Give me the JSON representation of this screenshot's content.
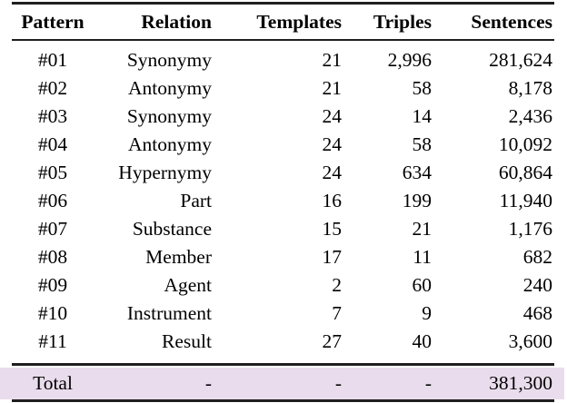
{
  "table": {
    "header": [
      "Pattern",
      "Relation",
      "Templates",
      "Triples",
      "Sentences"
    ],
    "rows": [
      [
        "#01",
        "Synonymy",
        "21",
        "2,996",
        "281,624"
      ],
      [
        "#02",
        "Antonymy",
        "21",
        "58",
        "8,178"
      ],
      [
        "#03",
        "Synonymy",
        "24",
        "14",
        "2,436"
      ],
      [
        "#04",
        "Antonymy",
        "24",
        "58",
        "10,092"
      ],
      [
        "#05",
        "Hypernymy",
        "24",
        "634",
        "60,864"
      ],
      [
        "#06",
        "Part",
        "16",
        "199",
        "11,940"
      ],
      [
        "#07",
        "Substance",
        "15",
        "21",
        "1,176"
      ],
      [
        "#08",
        "Member",
        "17",
        "11",
        "682"
      ],
      [
        "#09",
        "Agent",
        "2",
        "60",
        "240"
      ],
      [
        "#10",
        "Instrument",
        "7",
        "9",
        "468"
      ],
      [
        "#11",
        "Result",
        "27",
        "40",
        "3,600"
      ]
    ],
    "total": [
      "Total",
      "-",
      "-",
      "-",
      "381,300"
    ]
  },
  "colors": {
    "rule": "#1f1f1f",
    "total_row_background": "#e9dcec",
    "text": "#000000",
    "page_background": "#ffffff"
  }
}
